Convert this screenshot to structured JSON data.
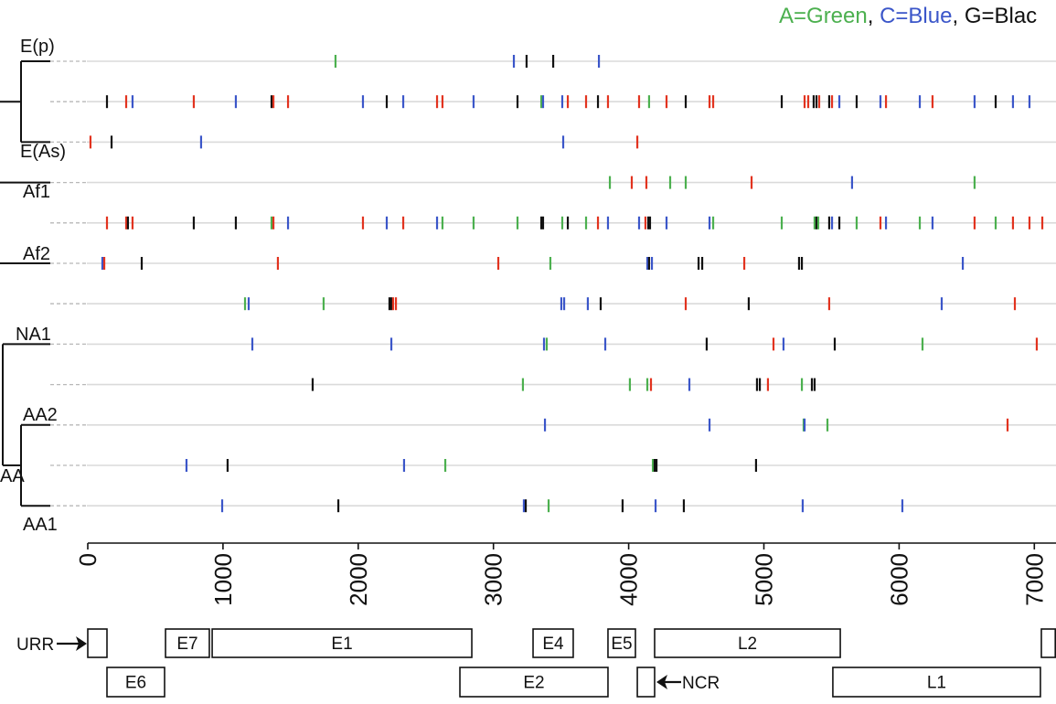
{
  "legend": {
    "items": [
      {
        "text": "A=Green",
        "color": "#4cb04f"
      },
      {
        "text": ", ",
        "color": "#111111"
      },
      {
        "text": "C=Blue",
        "color": "#3b56c9"
      },
      {
        "text": ", ",
        "color": "#111111"
      },
      {
        "text": "G=Blac",
        "color": "#111111"
      }
    ]
  },
  "colors": {
    "green": "#4cb04f",
    "blue": "#3b56c9",
    "black": "#111111",
    "red": "#e2331f"
  },
  "tree": {
    "labels": {
      "ep": "E(p)",
      "eas": "E(As)",
      "af1": "Af1",
      "af2": "Af2",
      "na1": "NA1",
      "aa2": "AA2",
      "aa": "AA",
      "aa1": "AA1"
    }
  },
  "chart_data": {
    "type": "scatter",
    "xlim": [
      0,
      7160
    ],
    "x_ticks": [
      0,
      1000,
      2000,
      3000,
      4000,
      5000,
      6000,
      7000
    ],
    "grid": false,
    "rows": [
      {
        "variants": [
          [
            1832,
            "green"
          ],
          [
            3151,
            "blue"
          ],
          [
            3245,
            "black"
          ],
          [
            3442,
            "black"
          ],
          [
            3780,
            "blue"
          ]
        ]
      },
      {
        "variants": [
          [
            142,
            "black"
          ],
          [
            284,
            "red"
          ],
          [
            331,
            "blue"
          ],
          [
            784,
            "red"
          ],
          [
            1095,
            "blue"
          ],
          [
            1359,
            "black"
          ],
          [
            1373,
            "red"
          ],
          [
            1481,
            "red"
          ],
          [
            2035,
            "blue"
          ],
          [
            2211,
            "black"
          ],
          [
            2333,
            "blue"
          ],
          [
            2583,
            "red"
          ],
          [
            2623,
            "red"
          ],
          [
            2853,
            "blue"
          ],
          [
            3178,
            "black"
          ],
          [
            3354,
            "green"
          ],
          [
            3367,
            "blue"
          ],
          [
            3509,
            "blue"
          ],
          [
            3550,
            "red"
          ],
          [
            3685,
            "red"
          ],
          [
            3773,
            "black"
          ],
          [
            3847,
            "red"
          ],
          [
            4077,
            "red"
          ],
          [
            4151,
            "green"
          ],
          [
            4280,
            "red"
          ],
          [
            4422,
            "black"
          ],
          [
            4598,
            "red"
          ],
          [
            4625,
            "red"
          ],
          [
            5132,
            "black"
          ],
          [
            5301,
            "red"
          ],
          [
            5328,
            "red"
          ],
          [
            5368,
            "black"
          ],
          [
            5389,
            "black"
          ],
          [
            5409,
            "red"
          ],
          [
            5483,
            "black"
          ],
          [
            5504,
            "red"
          ],
          [
            5558,
            "blue"
          ],
          [
            5686,
            "black"
          ],
          [
            5862,
            "blue"
          ],
          [
            5903,
            "red"
          ],
          [
            6153,
            "blue"
          ],
          [
            6247,
            "red"
          ],
          [
            6558,
            "blue"
          ],
          [
            6714,
            "black"
          ],
          [
            6842,
            "blue"
          ],
          [
            6964,
            "blue"
          ]
        ]
      },
      {
        "variants": [
          [
            20,
            "red"
          ],
          [
            176,
            "black"
          ],
          [
            838,
            "blue"
          ],
          [
            3516,
            "blue"
          ],
          [
            4064,
            "red"
          ]
        ]
      },
      {
        "variants": [
          [
            3861,
            "green"
          ],
          [
            4023,
            "red"
          ],
          [
            4131,
            "red"
          ],
          [
            4307,
            "green"
          ],
          [
            4422,
            "green"
          ],
          [
            4909,
            "red"
          ],
          [
            5652,
            "blue"
          ],
          [
            6558,
            "green"
          ]
        ]
      },
      {
        "variants": [
          [
            142,
            "red"
          ],
          [
            284,
            "red"
          ],
          [
            297,
            "black"
          ],
          [
            331,
            "red"
          ],
          [
            784,
            "black"
          ],
          [
            1095,
            "black"
          ],
          [
            1359,
            "green"
          ],
          [
            1373,
            "red"
          ],
          [
            1481,
            "blue"
          ],
          [
            2035,
            "red"
          ],
          [
            2211,
            "blue"
          ],
          [
            2333,
            "red"
          ],
          [
            2583,
            "blue"
          ],
          [
            2623,
            "green"
          ],
          [
            2853,
            "green"
          ],
          [
            3178,
            "green"
          ],
          [
            3354,
            "black"
          ],
          [
            3367,
            "black"
          ],
          [
            3509,
            "green"
          ],
          [
            3550,
            "black"
          ],
          [
            3685,
            "green"
          ],
          [
            3773,
            "red"
          ],
          [
            3847,
            "blue"
          ],
          [
            4077,
            "blue"
          ],
          [
            4124,
            "red"
          ],
          [
            4145,
            "black"
          ],
          [
            4158,
            "black"
          ],
          [
            4280,
            "blue"
          ],
          [
            4598,
            "blue"
          ],
          [
            4625,
            "green"
          ],
          [
            5132,
            "green"
          ],
          [
            5375,
            "green"
          ],
          [
            5389,
            "black"
          ],
          [
            5402,
            "green"
          ],
          [
            5483,
            "black"
          ],
          [
            5504,
            "blue"
          ],
          [
            5558,
            "black"
          ],
          [
            5686,
            "green"
          ],
          [
            5862,
            "red"
          ],
          [
            5903,
            "blue"
          ],
          [
            6153,
            "green"
          ],
          [
            6247,
            "blue"
          ],
          [
            6558,
            "red"
          ],
          [
            6714,
            "green"
          ],
          [
            6842,
            "red"
          ],
          [
            6964,
            "red"
          ],
          [
            7059,
            "red"
          ]
        ]
      },
      {
        "variants": [
          [
            108,
            "blue"
          ],
          [
            122,
            "red"
          ],
          [
            399,
            "black"
          ],
          [
            1406,
            "red"
          ],
          [
            3036,
            "red"
          ],
          [
            3421,
            "green"
          ],
          [
            4138,
            "blue"
          ],
          [
            4151,
            "black"
          ],
          [
            4172,
            "blue"
          ],
          [
            4517,
            "black"
          ],
          [
            4544,
            "black"
          ],
          [
            4855,
            "red"
          ],
          [
            5260,
            "black"
          ],
          [
            5281,
            "black"
          ],
          [
            6471,
            "blue"
          ]
        ]
      },
      {
        "variants": [
          [
            1163,
            "green"
          ],
          [
            1190,
            "blue"
          ],
          [
            1744,
            "green"
          ],
          [
            2231,
            "black"
          ],
          [
            2245,
            "black"
          ],
          [
            2258,
            "red"
          ],
          [
            2279,
            "red"
          ],
          [
            3502,
            "blue"
          ],
          [
            3523,
            "blue"
          ],
          [
            3698,
            "blue"
          ],
          [
            3793,
            "black"
          ],
          [
            4422,
            "red"
          ],
          [
            4888,
            "black"
          ],
          [
            5483,
            "red"
          ],
          [
            6315,
            "blue"
          ],
          [
            6856,
            "red"
          ]
        ]
      },
      {
        "variants": [
          [
            1217,
            "blue"
          ],
          [
            2245,
            "blue"
          ],
          [
            3374,
            "blue"
          ],
          [
            3394,
            "green"
          ],
          [
            3827,
            "blue"
          ],
          [
            4577,
            "black"
          ],
          [
            5071,
            "red"
          ],
          [
            5145,
            "blue"
          ],
          [
            5524,
            "black"
          ],
          [
            6173,
            "green"
          ],
          [
            7018,
            "red"
          ]
        ]
      },
      {
        "variants": [
          [
            1663,
            "black"
          ],
          [
            3218,
            "green"
          ],
          [
            4009,
            "green"
          ],
          [
            4138,
            "green"
          ],
          [
            4165,
            "red"
          ],
          [
            4449,
            "blue"
          ],
          [
            4949,
            "black"
          ],
          [
            4970,
            "black"
          ],
          [
            5030,
            "red"
          ],
          [
            5281,
            "green"
          ],
          [
            5355,
            "black"
          ],
          [
            5375,
            "black"
          ]
        ]
      },
      {
        "variants": [
          [
            3381,
            "blue"
          ],
          [
            4598,
            "blue"
          ],
          [
            5294,
            "green"
          ],
          [
            5301,
            "blue"
          ],
          [
            5470,
            "green"
          ],
          [
            6802,
            "red"
          ]
        ]
      },
      {
        "variants": [
          [
            730,
            "blue"
          ],
          [
            1034,
            "black"
          ],
          [
            2339,
            "blue"
          ],
          [
            2644,
            "green"
          ],
          [
            4179,
            "green"
          ],
          [
            4192,
            "black"
          ],
          [
            4206,
            "black"
          ],
          [
            4942,
            "black"
          ]
        ]
      },
      {
        "variants": [
          [
            994,
            "blue"
          ],
          [
            1853,
            "black"
          ],
          [
            3225,
            "blue"
          ],
          [
            3239,
            "black"
          ],
          [
            3408,
            "green"
          ],
          [
            3955,
            "black"
          ],
          [
            4199,
            "blue"
          ],
          [
            4408,
            "black"
          ],
          [
            5287,
            "blue"
          ],
          [
            6024,
            "blue"
          ]
        ]
      }
    ]
  },
  "gene_map": {
    "urr_label": "URR",
    "ncr_label": "NCR",
    "upper": [
      {
        "start": 0,
        "end": 142
      },
      {
        "label": "E7",
        "start": 575,
        "end": 899
      },
      {
        "label": "E1",
        "start": 920,
        "end": 2840
      },
      {
        "label": "E4",
        "start": 3293,
        "end": 3590
      },
      {
        "label": "E5",
        "start": 3847,
        "end": 4050
      },
      {
        "label": "L2",
        "start": 4192,
        "end": 5565
      },
      {
        "start": 7052,
        "end": 7160
      }
    ],
    "lower": [
      {
        "label": "E6",
        "start": 142,
        "end": 568
      },
      {
        "label": "E2",
        "start": 2752,
        "end": 3847
      },
      {
        "start": 4064,
        "end": 4192
      },
      {
        "label": "L1",
        "start": 5510,
        "end": 7045
      }
    ]
  }
}
